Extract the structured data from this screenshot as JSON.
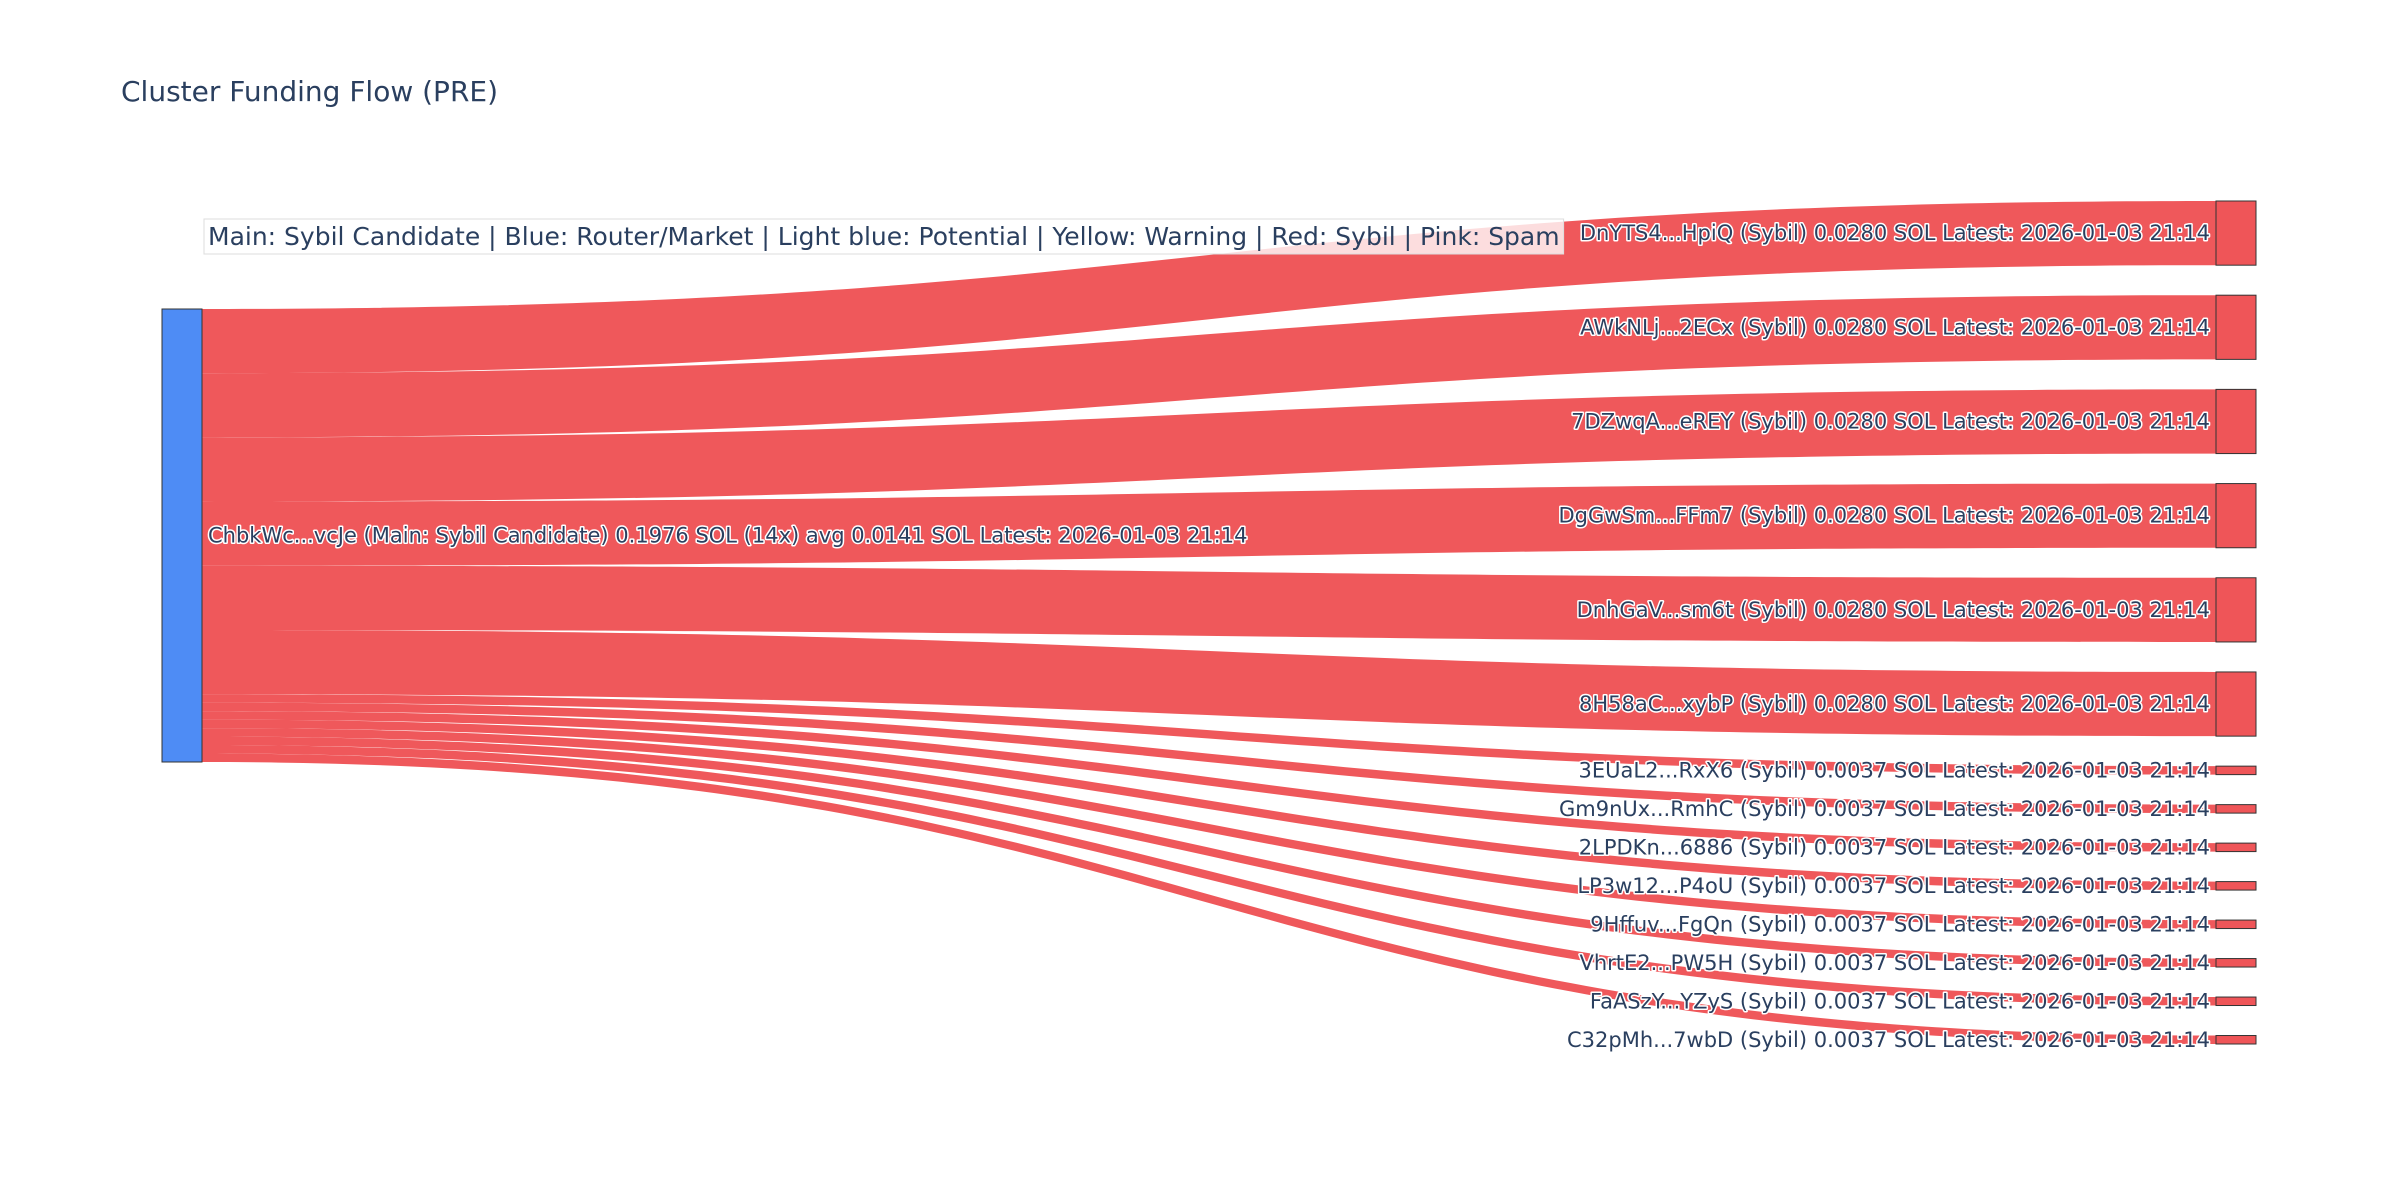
{
  "chart_data": {
    "type": "sankey",
    "title": "Cluster Funding Flow (PRE)",
    "annotation": "Main: Sybil Candidate  |  Blue: Router/Market | Light blue: Potential | Yellow: Warning | Red: Sybil | Pink: Spam",
    "value_unit": "SOL",
    "colors": {
      "source_node": "#4e8cf5",
      "target_node": "#ef5558",
      "link": "#ef5558",
      "node_border": "#333333",
      "text": "#2a3f5f"
    },
    "nodes": [
      {
        "id": "src",
        "label": "ChbkWc...vcJe (Main: Sybil Candidate) 0.1976 SOL (14x) avg 0.0141 SOL Latest: 2026-01-03 21:14",
        "role": "source"
      },
      {
        "id": "t1",
        "label": "DnYTS4...HpiQ (Sybil) 0.0280 SOL Latest: 2026-01-03 21:14",
        "role": "target"
      },
      {
        "id": "t2",
        "label": "AWkNLj...2ECx (Sybil) 0.0280 SOL Latest: 2026-01-03 21:14",
        "role": "target"
      },
      {
        "id": "t3",
        "label": "7DZwqA...eREY (Sybil) 0.0280 SOL Latest: 2026-01-03 21:14",
        "role": "target"
      },
      {
        "id": "t4",
        "label": "DgGwSm...FFm7 (Sybil) 0.0280 SOL Latest: 2026-01-03 21:14",
        "role": "target"
      },
      {
        "id": "t5",
        "label": "DnhGaV...sm6t (Sybil) 0.0280 SOL Latest: 2026-01-03 21:14",
        "role": "target"
      },
      {
        "id": "t6",
        "label": "8H58aC...xybP (Sybil) 0.0280 SOL Latest: 2026-01-03 21:14",
        "role": "target"
      },
      {
        "id": "t7",
        "label": "3EUaL2...RxX6 (Sybil) 0.0037 SOL Latest: 2026-01-03 21:14",
        "role": "target"
      },
      {
        "id": "t8",
        "label": "Gm9nUx...RmhC (Sybil) 0.0037 SOL Latest: 2026-01-03 21:14",
        "role": "target"
      },
      {
        "id": "t9",
        "label": "2LPDKn...6886 (Sybil) 0.0037 SOL Latest: 2026-01-03 21:14",
        "role": "target"
      },
      {
        "id": "t10",
        "label": "LP3w12...P4oU (Sybil) 0.0037 SOL Latest: 2026-01-03 21:14",
        "role": "target"
      },
      {
        "id": "t11",
        "label": "9Hffuv...FgQn (Sybil) 0.0037 SOL Latest: 2026-01-03 21:14",
        "role": "target"
      },
      {
        "id": "t12",
        "label": "VhrtE2...PW5H (Sybil) 0.0037 SOL Latest: 2026-01-03 21:14",
        "role": "target"
      },
      {
        "id": "t13",
        "label": "FaASzY...YZyS (Sybil) 0.0037 SOL Latest: 2026-01-03 21:14",
        "role": "target"
      },
      {
        "id": "t14",
        "label": "C32pMh...7wbD (Sybil) 0.0037 SOL Latest: 2026-01-03 21:14",
        "role": "target"
      }
    ],
    "links": [
      {
        "source": "src",
        "target": "t1",
        "value": 0.028
      },
      {
        "source": "src",
        "target": "t2",
        "value": 0.028
      },
      {
        "source": "src",
        "target": "t3",
        "value": 0.028
      },
      {
        "source": "src",
        "target": "t4",
        "value": 0.028
      },
      {
        "source": "src",
        "target": "t5",
        "value": 0.028
      },
      {
        "source": "src",
        "target": "t6",
        "value": 0.028
      },
      {
        "source": "src",
        "target": "t7",
        "value": 0.0037
      },
      {
        "source": "src",
        "target": "t8",
        "value": 0.0037
      },
      {
        "source": "src",
        "target": "t9",
        "value": 0.0037
      },
      {
        "source": "src",
        "target": "t10",
        "value": 0.0037
      },
      {
        "source": "src",
        "target": "t11",
        "value": 0.0037
      },
      {
        "source": "src",
        "target": "t12",
        "value": 0.0037
      },
      {
        "source": "src",
        "target": "t13",
        "value": 0.0037
      },
      {
        "source": "src",
        "target": "t14",
        "value": 0.0037
      }
    ]
  }
}
